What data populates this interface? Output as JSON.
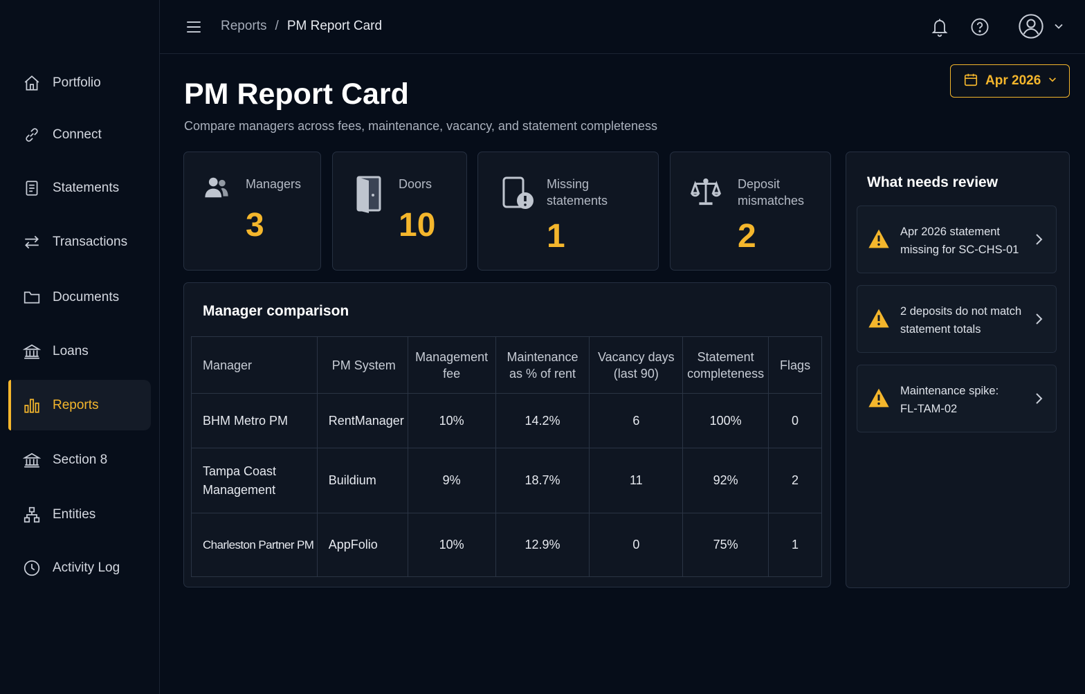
{
  "sidebar": {
    "items": [
      {
        "label": "Portfolio",
        "icon": "home-icon"
      },
      {
        "label": "Connect",
        "icon": "link-icon"
      },
      {
        "label": "Statements",
        "icon": "document-icon"
      },
      {
        "label": "Transactions",
        "icon": "arrows-icon"
      },
      {
        "label": "Documents",
        "icon": "folder-icon"
      },
      {
        "label": "Loans",
        "icon": "bank-icon"
      },
      {
        "label": "Reports",
        "icon": "bar-chart-icon",
        "active": true
      },
      {
        "label": "Section 8",
        "icon": "building-icon"
      },
      {
        "label": "Entities",
        "icon": "hierarchy-icon"
      },
      {
        "label": "Activity Log",
        "icon": "clock-icon"
      }
    ]
  },
  "header": {
    "breadcrumb": {
      "parent": "Reports",
      "separator": "/",
      "current": "PM Report Card"
    }
  },
  "page": {
    "title": "PM Report Card",
    "subtitle": "Compare managers across fees, maintenance, vacancy, and statement completeness",
    "month_selector": "Apr 2026"
  },
  "stats": {
    "managers": {
      "label": "Managers",
      "value": "3"
    },
    "doors": {
      "label": "Doors",
      "value": "10"
    },
    "missing": {
      "label_line1": "Missing",
      "label_line2": "statements",
      "value": "1"
    },
    "deposits": {
      "label_line1": "Deposit",
      "label_line2": "mismatches",
      "value": "2"
    }
  },
  "comparison": {
    "title": "Manager comparison",
    "headers": {
      "manager": "Manager",
      "system": "PM System",
      "fee_1": "Management",
      "fee_2": "fee",
      "maint_1": "Maintenance",
      "maint_2": "as % of rent",
      "vac_1": "Vacancy days",
      "vac_2": "(last 90)",
      "comp_1": "Statement",
      "comp_2": "completeness",
      "flags": "Flags"
    },
    "rows": [
      {
        "manager": "BHM Metro PM",
        "manager_2": "",
        "system": "RentManager",
        "fee": "10%",
        "maintenance": "14.2%",
        "vacancy": "6",
        "completeness": "100%",
        "flags": "0"
      },
      {
        "manager": "Tampa Coast",
        "manager_2": "Management",
        "system": "Buildium",
        "fee": "9%",
        "maintenance": "18.7%",
        "vacancy": "11",
        "completeness": "92%",
        "flags": "2"
      },
      {
        "manager": "Charleston Partner PM",
        "manager_2": "",
        "system": "AppFolio",
        "fee": "10%",
        "maintenance": "12.9%",
        "vacancy": "0",
        "completeness": "75%",
        "flags": "1"
      }
    ]
  },
  "review": {
    "title": "What needs review",
    "items": [
      {
        "line1": "Apr 2026 statement",
        "line2": "missing for SC-CHS-01"
      },
      {
        "line1": "2 deposits do not match",
        "line2": "statement totals"
      },
      {
        "line1": "Maintenance spike:",
        "line2": "FL-TAM-02"
      }
    ]
  },
  "colors": {
    "accent": "#f4b62c",
    "background": "#060d19",
    "card": "#0f1622"
  }
}
